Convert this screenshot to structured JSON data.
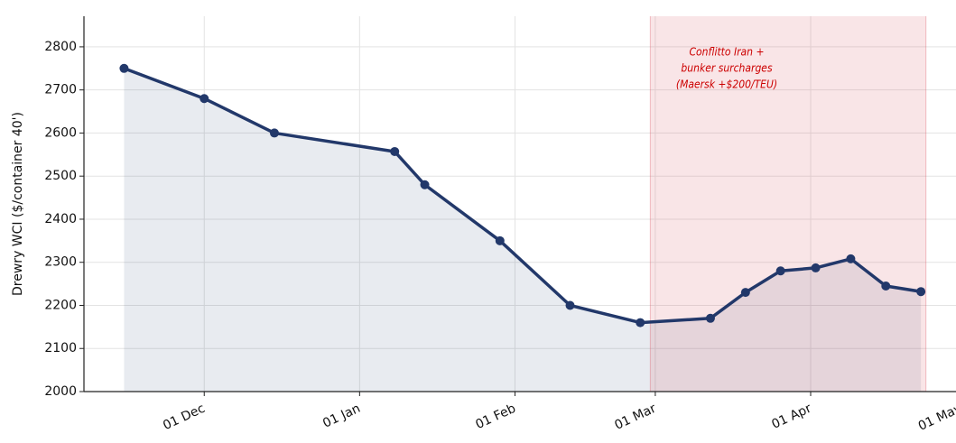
{
  "chart_data": {
    "type": "line",
    "ylabel": "Drewry WCI ($/container 40')",
    "x": [
      "11-15",
      "12-01",
      "12-15",
      "01-08",
      "01-14",
      "01-29",
      "02-12",
      "02-26",
      "03-12",
      "03-19",
      "03-26",
      "04-02",
      "04-09",
      "04-16",
      "04-23"
    ],
    "series": [
      {
        "name": "Drewry WCI",
        "color": "#22386a",
        "values": [
          2750,
          2680,
          2600,
          2557,
          2480,
          2350,
          2200,
          2160,
          2170,
          2230,
          2280,
          2287,
          2308,
          2245,
          2232
        ]
      }
    ],
    "xlim": [
      "11-07",
      "04-30"
    ],
    "xticks": [
      {
        "value": "12-01",
        "label": "01 Dec"
      },
      {
        "value": "01-01",
        "label": "01 Jan"
      },
      {
        "value": "02-01",
        "label": "01 Feb"
      },
      {
        "value": "03-01",
        "label": "01 Mar"
      },
      {
        "value": "04-01",
        "label": "01 Apr"
      },
      {
        "value": "05-01",
        "label": "01 May"
      }
    ],
    "ylim": [
      2000,
      2871
    ],
    "yticks": [
      2000,
      2100,
      2200,
      2300,
      2400,
      2500,
      2600,
      2700,
      2800
    ],
    "grid": true,
    "shaded_span": {
      "x": [
        "02-28",
        "04-24"
      ],
      "color": "#d9505f",
      "annotation": [
        "Conflitto Iran +",
        "bunker surcharges",
        "(Maersk +$200/TEU)"
      ],
      "annotation_color": "#cc0000"
    }
  }
}
